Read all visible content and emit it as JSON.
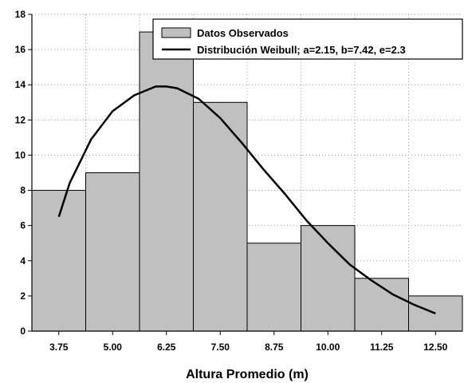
{
  "chart_data": {
    "type": "bar",
    "title": "",
    "xlabel": "Altura Promedio (m)",
    "ylabel": "",
    "categories": [
      "3.75",
      "5.00",
      "6.25",
      "7.50",
      "8.75",
      "10.00",
      "11.25",
      "12.50"
    ],
    "bin_width": 1.25,
    "ylim": [
      0,
      18
    ],
    "yticks": [
      "0",
      "2",
      "4",
      "6",
      "8",
      "10",
      "12",
      "14",
      "16",
      "18"
    ],
    "grid": true,
    "legend_position": "top-right",
    "series": [
      {
        "name": "Datos Observados",
        "kind": "histogram",
        "values": [
          8,
          9,
          17,
          13,
          5,
          6,
          3,
          2
        ],
        "color": "#c0c0c0"
      },
      {
        "name": "Distribución Weibull; a=2.15, b=7.42, e=2.3",
        "kind": "line",
        "x": [
          3.75,
          4.0,
          4.5,
          5.0,
          5.5,
          6.0,
          6.25,
          6.5,
          7.0,
          7.5,
          8.0,
          8.5,
          9.0,
          9.5,
          10.0,
          10.5,
          11.0,
          11.5,
          12.0,
          12.5
        ],
        "values": [
          6.5,
          8.4,
          10.9,
          12.5,
          13.4,
          13.9,
          13.9,
          13.8,
          13.2,
          12.1,
          10.7,
          9.2,
          7.8,
          6.3,
          5.0,
          3.8,
          2.9,
          2.1,
          1.5,
          1.0
        ],
        "color": "#000000"
      }
    ]
  }
}
